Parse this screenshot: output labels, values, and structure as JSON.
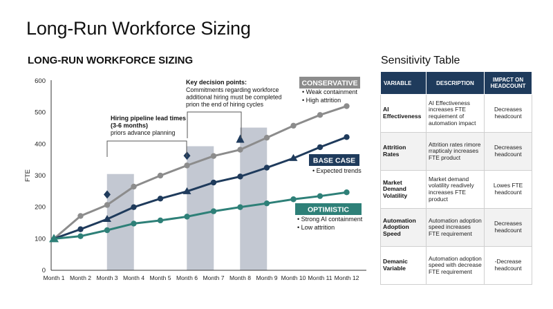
{
  "page": {
    "title": "Long-Run Workforce Sizing",
    "chart_heading": "LONG-RUN WORKFORCE SIZING",
    "table_heading": "Sensitivity Table"
  },
  "chart_data": {
    "type": "line",
    "title": "LONG-RUN WORKFORCE SIZING",
    "xlabel": "",
    "ylabel": "FTE",
    "ylim": [
      0,
      600
    ],
    "yticks": [
      0,
      100,
      200,
      300,
      400,
      500,
      600
    ],
    "grid": false,
    "categories": [
      "Month 1",
      "Month 2",
      "Month 3",
      "Month 4",
      "Month 5",
      "Month 6",
      "Month 7",
      "Month 8",
      "Month 9",
      "Month 10",
      "Month 11",
      "Month 12"
    ],
    "series": [
      {
        "name": "CONSERVATIVE",
        "color": "#8c8c8c",
        "values": [
          100,
          172,
          207,
          265,
          300,
          332,
          362,
          382,
          420,
          458,
          492,
          520
        ]
      },
      {
        "name": "BASE CASE",
        "color": "#1f3b5c",
        "values": [
          100,
          130,
          162,
          200,
          227,
          250,
          278,
          297,
          325,
          355,
          390,
          422
        ]
      },
      {
        "name": "OPTIMISTIC",
        "color": "#2e8078",
        "values": [
          100,
          108,
          127,
          148,
          158,
          170,
          187,
          200,
          212,
          225,
          235,
          247
        ]
      }
    ],
    "shaded_periods": [
      {
        "category": "Month 3.5",
        "value": 305
      },
      {
        "category": "Month 6.5",
        "value": 393
      },
      {
        "category": "Month 8.5",
        "value": 452
      }
    ],
    "markers": [
      {
        "x": "Month 3",
        "value": 240
      },
      {
        "x": "Month 6",
        "value": 363
      },
      {
        "x": "Month 8",
        "value": 415
      }
    ],
    "annotations": {
      "hiring": {
        "title": "Hiring pipeline lead times (3-6 months)",
        "text": "priors advance planning"
      },
      "decision": {
        "title": "Key decision points:",
        "text": "Commitments regarding workforce additional hiring must be completed prion the end of hiring cycles"
      }
    },
    "legend_boxes": [
      {
        "label": "CONSERVATIVE",
        "bullets": [
          "Weak containment",
          "High attrition"
        ]
      },
      {
        "label": "BASE CASE",
        "bullets": [
          "Expected trends"
        ]
      },
      {
        "label": "OPTIMISTIC",
        "bullets": [
          "Strong AI containment",
          "Low attrition"
        ]
      }
    ]
  },
  "table": {
    "headers": [
      "VARIABLE",
      "DESCRIPTION",
      "IMPACT ON HEADCOUNT"
    ],
    "rows": [
      {
        "variable": "AI Effectiveness",
        "description": "AI Effectiveness increases FTE requiement of automation impact",
        "impact": "Decreases headcount"
      },
      {
        "variable": "Attrition Rates",
        "description": "Attrition rates rimore rrapticaly increases FTE product",
        "impact": "Decreases headcount"
      },
      {
        "variable": "Market Demand Volatility",
        "description": "Market demand volatility readively increases FTE product",
        "impact": "Lowes FTE headcount"
      },
      {
        "variable": "Automation Adoption Speed",
        "description": "Automation adoption speed increases FTE requirement",
        "impact": "Decreases headcount"
      },
      {
        "variable": "Demanic Variable",
        "description": "Automation adoption speed with decrease FTE requirement",
        "impact": "-Decrease headcount"
      }
    ]
  }
}
